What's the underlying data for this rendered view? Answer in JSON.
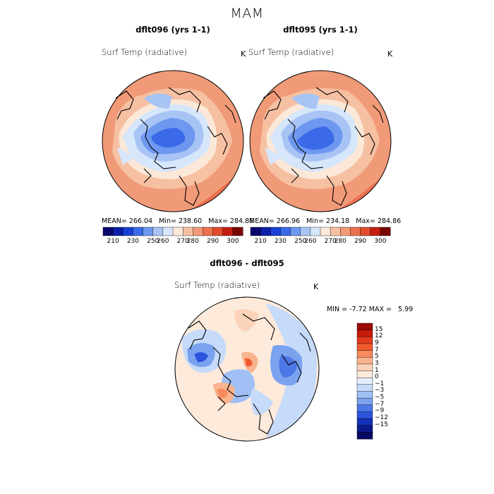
{
  "figure": {
    "season": "MAM",
    "colors": {
      "background": "#ffffff",
      "ocean_outline": "#000000"
    }
  },
  "panels": [
    {
      "title": "dflt096 (yrs 1-1)",
      "variable": "Surf Temp (radiative)",
      "units": "K",
      "stats": {
        "mean_label": "MEAN=",
        "mean": "266.04",
        "min_label": "Min=",
        "min": "238.60",
        "max_label": "Max=",
        "max": "284.86"
      }
    },
    {
      "title": "dflt095 (yrs 1-1)",
      "variable": "Surf Temp (radiative)",
      "units": "K",
      "stats": {
        "mean_label": "MEAN=",
        "mean": "266.96",
        "min_label": "Min=",
        "min": "234.18",
        "max_label": "Max=",
        "max": "284.86"
      }
    }
  ],
  "abs_colorbar": {
    "colors": [
      "#08086b",
      "#0b1fa8",
      "#1a3fd6",
      "#3a6ae8",
      "#6e98f0",
      "#a8c4f5",
      "#d6e6fb",
      "#fbe8d8",
      "#f6c0a2",
      "#f19a78",
      "#ec704f",
      "#e24a2c",
      "#c41f12",
      "#7a0503"
    ],
    "labels": [
      "210",
      "230",
      "250",
      "260",
      "270",
      "280",
      "290",
      "300"
    ]
  },
  "diff_panel": {
    "title": "dflt096 - dflt095",
    "variable": "Surf Temp (radiative)",
    "units": "K",
    "min_label": "MIN =",
    "min": "-7.72",
    "max_label": "MAX =",
    "max": "5.99"
  },
  "diff_colorbar": {
    "colors_top_to_bottom": [
      "#9b0a06",
      "#c8190c",
      "#e23a1c",
      "#f05a2e",
      "#f68b5e",
      "#f9b38e",
      "#fbd3b8",
      "#fdeadb",
      "#e4eefb",
      "#c6dafa",
      "#9fbff5",
      "#7aa2ef",
      "#4c78e6",
      "#2a54db",
      "#1331b8",
      "#0b1a8a",
      "#050a62"
    ],
    "labels": [
      "15",
      "12",
      "9",
      "7",
      "5",
      "3",
      "1",
      "0",
      "−1",
      "−3",
      "−5",
      "−7",
      "−9",
      "−12",
      "−15"
    ]
  }
}
